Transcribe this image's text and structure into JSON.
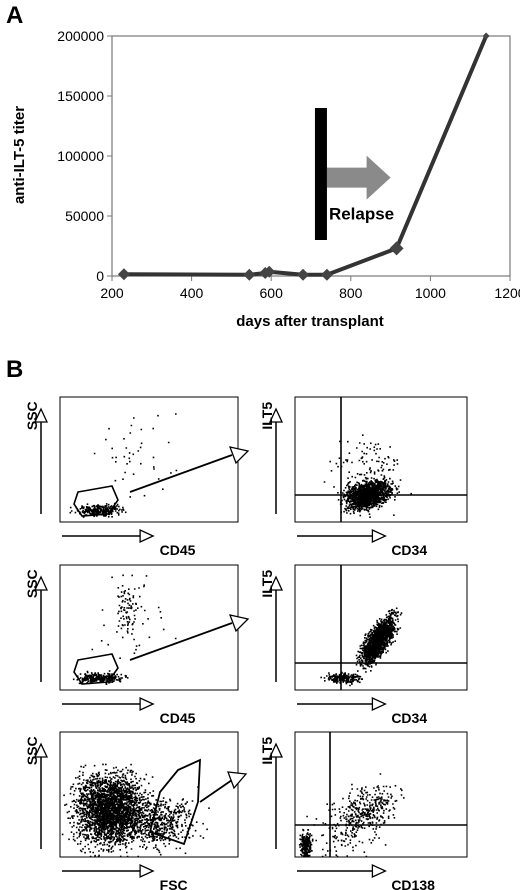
{
  "figure": {
    "panel_a_label": "A",
    "panel_b_label": "B"
  },
  "chart_data": {
    "type": "line",
    "title": "",
    "xlabel": "days after transplant",
    "ylabel": "anti-ILT-5 titer",
    "xlim": [
      200,
      1200
    ],
    "ylim": [
      0,
      200000
    ],
    "x_ticks": [
      "200",
      "400",
      "600",
      "800",
      "1000",
      "1200"
    ],
    "y_ticks": [
      "0",
      "50000",
      "100000",
      "150000",
      "200000"
    ],
    "grid": false,
    "series": [
      {
        "x": [
          230,
          545,
          585,
          595,
          680,
          740,
          915,
          1140
        ],
        "y": [
          1500,
          1000,
          2500,
          3500,
          1000,
          1000,
          23000,
          200000
        ]
      }
    ],
    "annotation": {
      "text": "Relapse",
      "x": 725,
      "y_range": [
        30000,
        140000
      ],
      "arrow_to_x": 900,
      "arrow_y": 82000
    }
  },
  "flow_panels": {
    "rows": [
      {
        "left": {
          "y_label": "SSC",
          "x_label": "CD45"
        },
        "right": {
          "y_label": "ILT5",
          "x_label": "CD34"
        }
      },
      {
        "left": {
          "y_label": "SSC",
          "x_label": "CD45"
        },
        "right": {
          "y_label": "ILT5",
          "x_label": "CD34"
        }
      },
      {
        "left": {
          "y_label": "SSC",
          "x_label": "FSC"
        },
        "right": {
          "y_label": "ILT5",
          "x_label": "CD138"
        }
      }
    ]
  }
}
